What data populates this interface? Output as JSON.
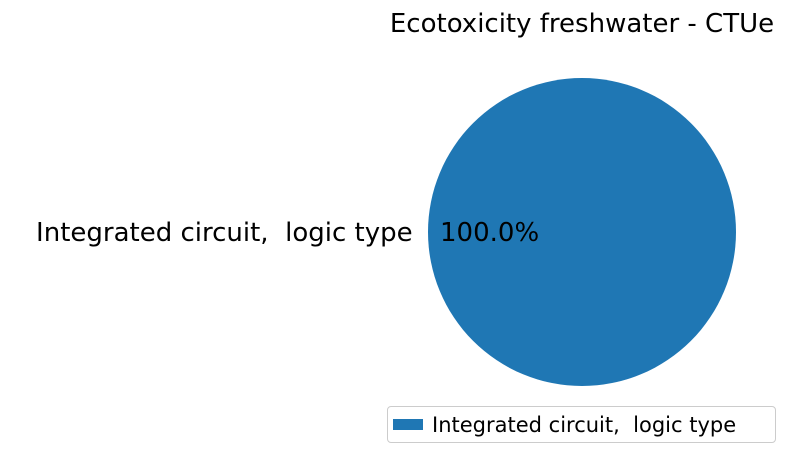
{
  "chart_data": {
    "type": "pie",
    "title": "Ecotoxicity freshwater - CTUe",
    "categories": [
      "Integrated circuit,  logic type"
    ],
    "values": [
      100.0
    ],
    "percent_labels": [
      "100.0%"
    ],
    "colors": [
      "#1f77b4"
    ],
    "legend": {
      "placement": "lower-right",
      "entries": [
        "Integrated circuit,  logic type"
      ]
    }
  }
}
